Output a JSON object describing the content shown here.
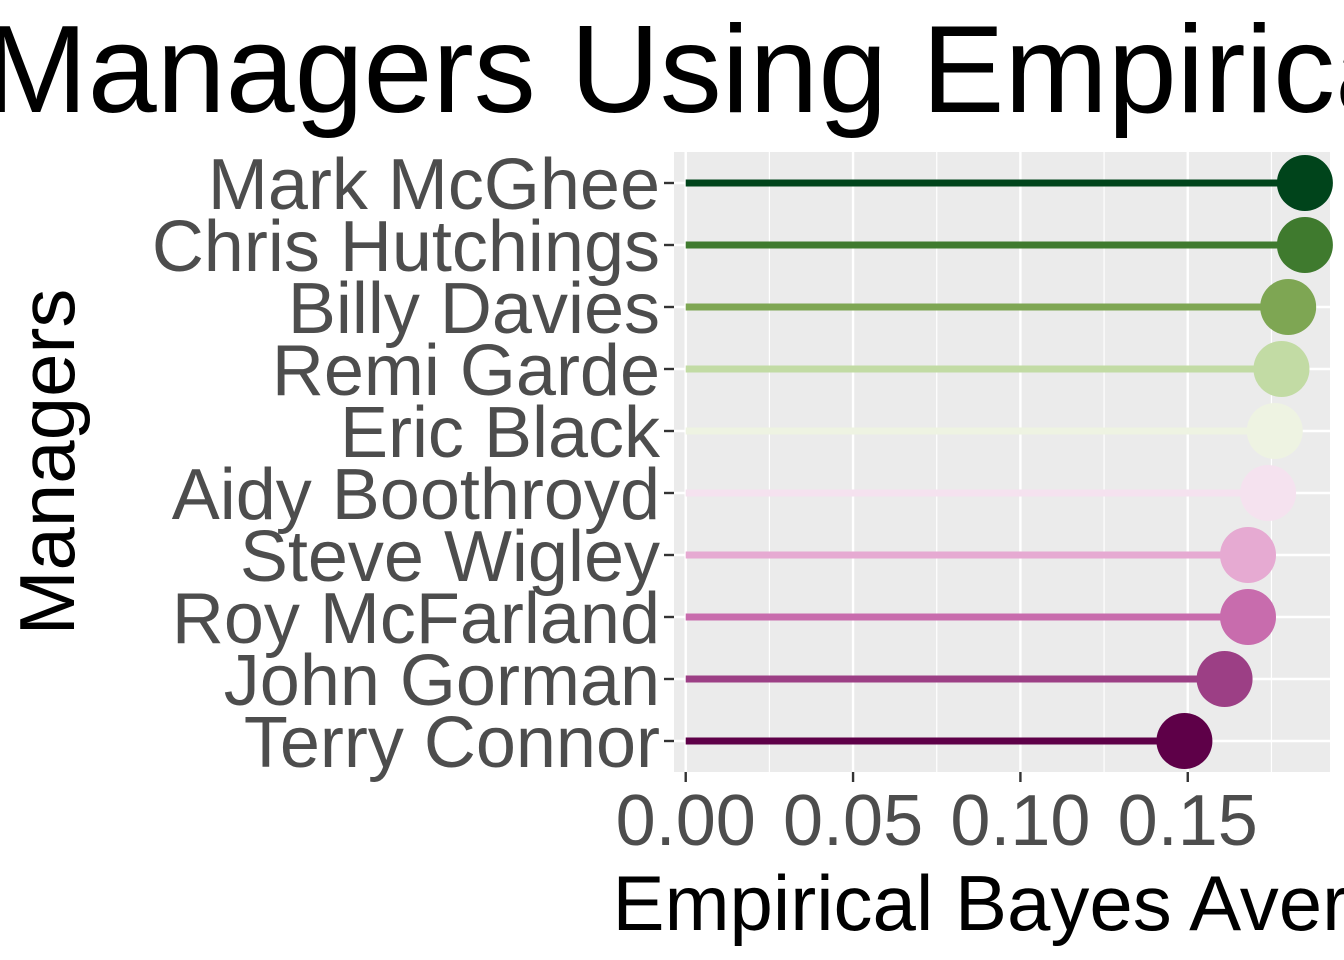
{
  "chart_data": {
    "type": "lollipop",
    "title": "Managers Using Empirical",
    "xlabel": "Empirical Bayes Avera",
    "ylabel": "Managers",
    "xlim": [
      -0.0035,
      0.1925
    ],
    "x_ticks": [
      0.0,
      0.05,
      0.1,
      0.15
    ],
    "x_tick_labels": [
      "0.00",
      "0.05",
      "0.10",
      "0.15"
    ],
    "grid": true,
    "legend": "none",
    "categories": [
      "Mark McGhee",
      "Chris Hutchings",
      "Billy Davies",
      "Remi Garde",
      "Eric Black",
      "Aidy Boothroyd",
      "Steve Wigley",
      "Roy McFarland",
      "John Gorman",
      "Terry Connor"
    ],
    "values": [
      0.185,
      0.185,
      0.18,
      0.178,
      0.176,
      0.174,
      0.168,
      0.168,
      0.161,
      0.149
    ],
    "colors": [
      "#00441b",
      "#3f7a2e",
      "#7ea653",
      "#c2dba4",
      "#eef3e2",
      "#f5e2ef",
      "#e6aad2",
      "#c86cad",
      "#9c3f85",
      "#5e0048"
    ],
    "panel_background": "#ebebeb"
  }
}
